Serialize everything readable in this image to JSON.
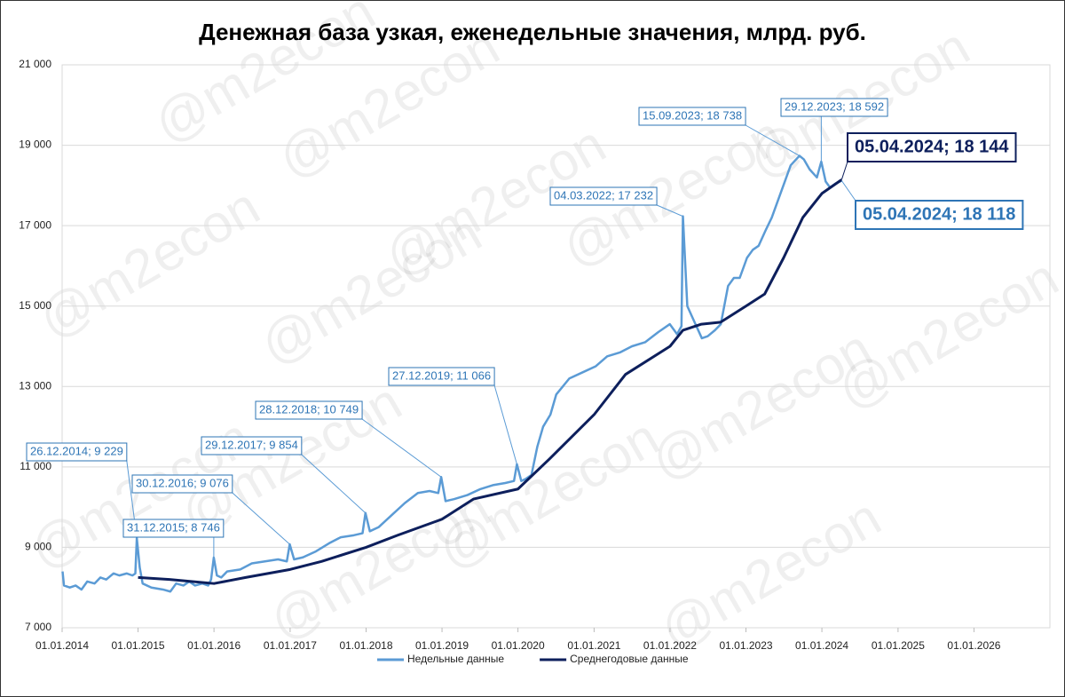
{
  "chart_data": {
    "type": "line",
    "title": "Денежная база узкая, еженедельные значения, млрд. руб.",
    "watermark": "@m2econ",
    "xlim": [
      "2014-01-01",
      "2027-01-01"
    ],
    "xticks": [
      {
        "value": "2014-01-01",
        "label": "01.01.2014"
      },
      {
        "value": "2015-01-01",
        "label": "01.01.2015"
      },
      {
        "value": "2016-01-01",
        "label": "01.01.2016"
      },
      {
        "value": "2017-01-01",
        "label": "01.01.2017"
      },
      {
        "value": "2018-01-01",
        "label": "01.01.2018"
      },
      {
        "value": "2019-01-01",
        "label": "01.01.2019"
      },
      {
        "value": "2020-01-01",
        "label": "01.01.2020"
      },
      {
        "value": "2021-01-01",
        "label": "01.01.2021"
      },
      {
        "value": "2022-01-01",
        "label": "01.01.2022"
      },
      {
        "value": "2023-01-01",
        "label": "01.01.2023"
      },
      {
        "value": "2024-01-01",
        "label": "01.01.2024"
      },
      {
        "value": "2025-01-01",
        "label": "01.01.2025"
      },
      {
        "value": "2026-01-01",
        "label": "01.01.2026"
      }
    ],
    "ylim": [
      7000,
      21000
    ],
    "yticks": [
      {
        "value": 7000,
        "label": "7 000"
      },
      {
        "value": 9000,
        "label": "9 000"
      },
      {
        "value": 11000,
        "label": "11 000"
      },
      {
        "value": 13000,
        "label": "13 000"
      },
      {
        "value": 15000,
        "label": "15 000"
      },
      {
        "value": 17000,
        "label": "17 000"
      },
      {
        "value": 19000,
        "label": "19 000"
      },
      {
        "value": 21000,
        "label": "21 000"
      }
    ],
    "grid": true,
    "series": [
      {
        "name": "Недельные данные",
        "color": "#5b9bd5",
        "x": [
          "2014-01-03",
          "2014-01-10",
          "2014-02-07",
          "2014-03-07",
          "2014-04-04",
          "2014-05-02",
          "2014-06-06",
          "2014-07-04",
          "2014-08-01",
          "2014-09-05",
          "2014-10-03",
          "2014-11-07",
          "2014-12-05",
          "2014-12-19",
          "2014-12-26",
          "2015-01-09",
          "2015-01-23",
          "2015-03-06",
          "2015-05-01",
          "2015-06-05",
          "2015-07-03",
          "2015-08-07",
          "2015-09-04",
          "2015-10-02",
          "2015-11-06",
          "2015-12-04",
          "2015-12-18",
          "2015-12-31",
          "2016-01-15",
          "2016-02-05",
          "2016-03-04",
          "2016-05-06",
          "2016-07-01",
          "2016-09-02",
          "2016-11-04",
          "2016-12-16",
          "2016-12-30",
          "2017-01-20",
          "2017-03-03",
          "2017-05-05",
          "2017-07-07",
          "2017-09-01",
          "2017-11-03",
          "2017-12-15",
          "2017-12-29",
          "2018-01-19",
          "2018-03-02",
          "2018-05-04",
          "2018-07-06",
          "2018-09-07",
          "2018-11-02",
          "2018-12-14",
          "2018-12-28",
          "2019-01-18",
          "2019-03-01",
          "2019-05-03",
          "2019-07-05",
          "2019-09-06",
          "2019-11-01",
          "2019-12-13",
          "2019-12-27",
          "2020-01-17",
          "2020-02-07",
          "2020-03-06",
          "2020-04-03",
          "2020-05-01",
          "2020-06-05",
          "2020-07-03",
          "2020-09-04",
          "2020-11-06",
          "2021-01-08",
          "2021-03-05",
          "2021-05-07",
          "2021-07-02",
          "2021-09-03",
          "2021-11-05",
          "2021-12-31",
          "2022-02-04",
          "2022-02-25",
          "2022-03-04",
          "2022-03-25",
          "2022-04-29",
          "2022-06-03",
          "2022-07-01",
          "2022-08-05",
          "2022-09-02",
          "2022-10-07",
          "2022-11-04",
          "2022-12-02",
          "2023-01-06",
          "2023-02-03",
          "2023-03-03",
          "2023-04-07",
          "2023-05-05",
          "2023-06-02",
          "2023-07-07",
          "2023-08-04",
          "2023-09-15",
          "2023-10-06",
          "2023-11-03",
          "2023-12-08",
          "2023-12-29",
          "2024-01-19",
          "2024-02-09",
          "2024-03-08",
          "2024-04-05"
        ],
        "values": [
          8400,
          8050,
          8000,
          8050,
          7950,
          8150,
          8100,
          8250,
          8200,
          8350,
          8300,
          8350,
          8300,
          8350,
          9229,
          8500,
          8100,
          8000,
          7950,
          7900,
          8100,
          8050,
          8150,
          8050,
          8100,
          8050,
          8200,
          8746,
          8300,
          8250,
          8400,
          8450,
          8600,
          8650,
          8700,
          8650,
          9076,
          8700,
          8750,
          8900,
          9100,
          9250,
          9300,
          9350,
          9854,
          9400,
          9500,
          9800,
          10100,
          10350,
          10400,
          10350,
          10749,
          10150,
          10200,
          10300,
          10450,
          10550,
          10600,
          10650,
          11066,
          10650,
          10700,
          10800,
          11500,
          12000,
          12300,
          12800,
          13200,
          13350,
          13500,
          13750,
          13850,
          14000,
          14100,
          14350,
          14550,
          14300,
          14500,
          17232,
          15000,
          14600,
          14200,
          14250,
          14400,
          14550,
          15500,
          15700,
          15700,
          16200,
          16400,
          16500,
          16900,
          17200,
          17600,
          18100,
          18500,
          18738,
          18650,
          18400,
          18200,
          18592,
          18100,
          17950,
          18050,
          18118
        ]
      },
      {
        "name": "Среднегодовые данные",
        "color": "#0d1f5c",
        "x": [
          "2015-01-01",
          "2015-06-01",
          "2016-01-01",
          "2016-06-01",
          "2017-01-01",
          "2017-06-01",
          "2018-01-01",
          "2018-06-01",
          "2019-01-01",
          "2019-06-01",
          "2020-01-01",
          "2020-06-01",
          "2021-01-01",
          "2021-06-01",
          "2022-01-01",
          "2022-03-04",
          "2022-06-01",
          "2022-09-01",
          "2023-01-01",
          "2023-04-01",
          "2023-07-01",
          "2023-10-01",
          "2024-01-01",
          "2024-04-05"
        ],
        "values": [
          8250,
          8200,
          8100,
          8250,
          8450,
          8650,
          9000,
          9300,
          9700,
          10200,
          10450,
          11200,
          12300,
          13300,
          14000,
          14400,
          14550,
          14600,
          15000,
          15300,
          16200,
          17200,
          17800,
          18144
        ]
      }
    ],
    "annotations": [
      {
        "series": 0,
        "x": "2014-12-26",
        "y": 9229,
        "label": "26.12.2014; 9 229"
      },
      {
        "series": 0,
        "x": "2015-12-31",
        "y": 8746,
        "label": "31.12.2015; 8 746"
      },
      {
        "series": 0,
        "x": "2016-12-30",
        "y": 9076,
        "label": "30.12.2016; 9 076"
      },
      {
        "series": 0,
        "x": "2017-12-29",
        "y": 9854,
        "label": "29.12.2017; 9 854"
      },
      {
        "series": 0,
        "x": "2018-12-28",
        "y": 10749,
        "label": "28.12.2018; 10 749"
      },
      {
        "series": 0,
        "x": "2019-12-27",
        "y": 11066,
        "label": "27.12.2019; 11 066"
      },
      {
        "series": 0,
        "x": "2022-03-04",
        "y": 17232,
        "label": "04.03.2022; 17 232"
      },
      {
        "series": 0,
        "x": "2023-09-15",
        "y": 18738,
        "label": "15.09.2023; 18 738"
      },
      {
        "series": 0,
        "x": "2023-12-29",
        "y": 18592,
        "label": "29.12.2023; 18 592"
      },
      {
        "series": 1,
        "x": "2024-04-05",
        "y": 18144,
        "label": "05.04.2024; 18 144"
      },
      {
        "series": 0,
        "x": "2024-04-05",
        "y": 18118,
        "label": "05.04.2024; 18 118"
      }
    ]
  }
}
